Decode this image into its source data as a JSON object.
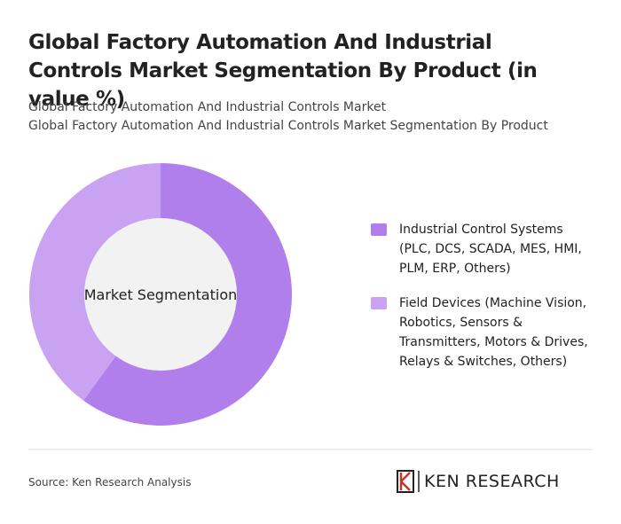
{
  "chart_data": {
    "type": "pie",
    "title": "Global Factory Automation And Industrial Controls Market Segmentation By Product (in value %)",
    "subtitles": [
      "Global Factory Automation And Industrial Controls Market",
      "Global Factory Automation And Industrial Controls Market Segmentation By Product"
    ],
    "center_label": "Market Segmentation",
    "categories": [
      "Industrial Control Systems (PLC, DCS, SCADA, MES, HMI, PLM, ERP, Others)",
      "Field Devices (Machine Vision, Robotics, Sensors & Transmitters, Motors & Drives, Relays & Switches, Others)"
    ],
    "values": [
      60,
      40
    ],
    "colors": [
      "#b07fec",
      "#c9a3f1"
    ],
    "source": "Source: Ken Research Analysis",
    "logo": "KEN RESEARCH"
  }
}
